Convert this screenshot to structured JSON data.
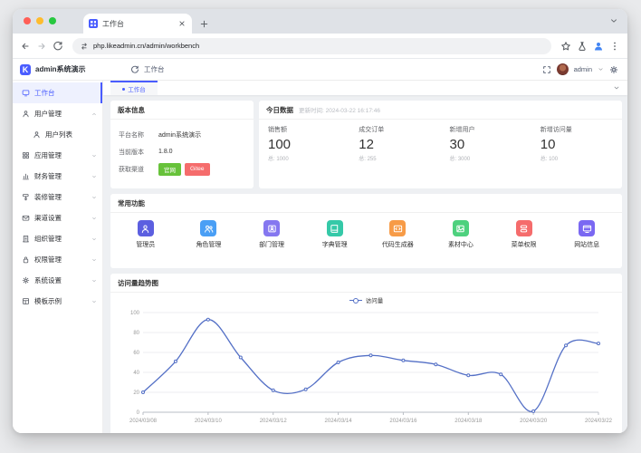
{
  "browser": {
    "tab": {
      "title": "工作台"
    },
    "url": "php.likeadmin.cn/admin/workbench"
  },
  "app": {
    "brand": "admin系统演示",
    "breadcrumb": "工作台",
    "username": "admin"
  },
  "sidebar": {
    "items": [
      {
        "label": "工作台",
        "icon": "monitor-icon",
        "active": true
      },
      {
        "label": "用户管理",
        "icon": "user-icon",
        "expanded": true
      },
      {
        "label": "用户列表",
        "icon": "user-icon",
        "sub": true
      },
      {
        "label": "应用管理",
        "icon": "apps-icon"
      },
      {
        "label": "财务管理",
        "icon": "finance-icon"
      },
      {
        "label": "装修管理",
        "icon": "decorate-icon"
      },
      {
        "label": "渠道设置",
        "icon": "channel-icon"
      },
      {
        "label": "组织管理",
        "icon": "organization-icon"
      },
      {
        "label": "权限管理",
        "icon": "permission-icon"
      },
      {
        "label": "系统设置",
        "icon": "settings-icon"
      },
      {
        "label": "模板示例",
        "icon": "template-icon"
      }
    ]
  },
  "workspace_tab": {
    "label": "工作台"
  },
  "version_card": {
    "title": "版本信息",
    "platform_label": "平台名称",
    "platform_value": "admin系统演示",
    "version_label": "当前版本",
    "version_value": "1.8.0",
    "channel_label": "获取渠道",
    "channels": [
      {
        "label": "官网",
        "color": "#67c23a"
      },
      {
        "label": "Gitee",
        "color": "#f56c6c"
      }
    ]
  },
  "today_card": {
    "title": "今日数据",
    "updated": "更新时间: 2024-03-22 16:17:46",
    "stats": [
      {
        "label": "销售额",
        "value": "100",
        "total": "总: 1000"
      },
      {
        "label": "成交订单",
        "value": "12",
        "total": "总: 255"
      },
      {
        "label": "新增用户",
        "value": "30",
        "total": "总: 3000"
      },
      {
        "label": "新增访问量",
        "value": "10",
        "total": "总: 100"
      }
    ]
  },
  "functions_card": {
    "title": "常用功能",
    "items": [
      {
        "label": "管理员",
        "icon": "admin-icon",
        "glyph": "user",
        "color": "#5c5fe0"
      },
      {
        "label": "角色管理",
        "icon": "role-icon",
        "glyph": "people",
        "color": "#4a9ff5"
      },
      {
        "label": "部门管理",
        "icon": "department-icon",
        "glyph": "idcard",
        "color": "#8577f0"
      },
      {
        "label": "字典管理",
        "icon": "dictionary-icon",
        "glyph": "book",
        "color": "#35c9a8"
      },
      {
        "label": "代码生成器",
        "icon": "code-generator-icon",
        "glyph": "code",
        "color": "#f79b47"
      },
      {
        "label": "素材中心",
        "icon": "material-center-icon",
        "glyph": "image",
        "color": "#4ed17e"
      },
      {
        "label": "菜单权限",
        "icon": "menu-permission-icon",
        "glyph": "menu",
        "color": "#f56c6c"
      },
      {
        "label": "网站信息",
        "icon": "website-info-icon",
        "glyph": "website",
        "color": "#7a68f2"
      }
    ]
  },
  "chart_card": {
    "title": "访问量趋势图"
  },
  "chart_data": {
    "type": "line",
    "title": "访问量趋势图",
    "legend": [
      "访问量"
    ],
    "legend_position": "top-center",
    "smooth": true,
    "grid": true,
    "x": [
      "2024/03/08",
      "2024/03/09",
      "2024/03/10",
      "2024/03/11",
      "2024/03/12",
      "2024/03/13",
      "2024/03/14",
      "2024/03/15",
      "2024/03/16",
      "2024/03/17",
      "2024/03/18",
      "2024/03/19",
      "2024/03/20",
      "2024/03/21",
      "2024/03/22"
    ],
    "x_tick_labels": [
      "2024/03/08",
      "2024/03/10",
      "2024/03/12",
      "2024/03/14",
      "2024/03/16",
      "2024/03/18",
      "2024/03/20",
      "2024/03/22"
    ],
    "series": [
      {
        "name": "访问量",
        "color": "#5470c6",
        "values": [
          20,
          51,
          93,
          55,
          22,
          23,
          50,
          57,
          52,
          48,
          37,
          38,
          1,
          67,
          69
        ]
      }
    ],
    "ylim": [
      0,
      100
    ],
    "yticks": [
      0,
      20,
      40,
      60,
      80,
      100
    ]
  }
}
